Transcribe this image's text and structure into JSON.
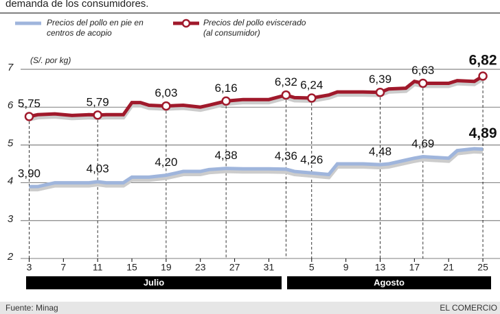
{
  "chart_data": {
    "type": "line",
    "subtitle": "demanda de los consumidores.",
    "y_label": "(S/. por kg)",
    "x": [
      0,
      1,
      3,
      5,
      7,
      8,
      9,
      11,
      12,
      13,
      14,
      16,
      18,
      20,
      21,
      23,
      25,
      28,
      30,
      31,
      33,
      35,
      36,
      39,
      41,
      42,
      44,
      45,
      46,
      49,
      50,
      52,
      53
    ],
    "series": [
      {
        "name": "Precios del pollo en pie en centros de acopio",
        "color": "#9fb5dc",
        "values": [
          3.9,
          3.9,
          4.0,
          4.0,
          4.0,
          4.03,
          4.0,
          4.0,
          4.15,
          4.15,
          4.15,
          4.2,
          4.3,
          4.3,
          4.35,
          4.38,
          4.37,
          4.37,
          4.36,
          4.3,
          4.26,
          4.22,
          4.5,
          4.5,
          4.48,
          4.5,
          4.6,
          4.65,
          4.69,
          4.65,
          4.85,
          4.9,
          4.89
        ],
        "value_labels": [
          "3,90",
          null,
          null,
          null,
          null,
          "4,03",
          null,
          null,
          null,
          null,
          null,
          "4,20",
          null,
          null,
          null,
          "4,38",
          null,
          null,
          "4,36",
          null,
          "4,26",
          null,
          null,
          null,
          "4,48",
          null,
          null,
          null,
          "4,69",
          null,
          null,
          null,
          "4,89"
        ]
      },
      {
        "name": "Precios del pollo eviscerado (al consumidor)",
        "color": "#a0192b",
        "values": [
          5.75,
          5.8,
          5.82,
          5.78,
          5.8,
          5.79,
          5.8,
          5.8,
          6.12,
          6.12,
          6.05,
          6.03,
          6.05,
          6.0,
          6.05,
          6.16,
          6.2,
          6.2,
          6.32,
          6.25,
          6.24,
          6.32,
          6.4,
          6.4,
          6.39,
          6.48,
          6.5,
          6.68,
          6.63,
          6.63,
          6.7,
          6.68,
          6.82
        ],
        "value_labels": [
          "5,75",
          null,
          null,
          null,
          null,
          "5,79",
          null,
          null,
          null,
          null,
          null,
          "6,03",
          null,
          null,
          null,
          "6,16",
          null,
          null,
          "6,32",
          null,
          "6,24",
          null,
          null,
          null,
          "6,39",
          null,
          null,
          null,
          "6,63",
          null,
          null,
          null,
          "6,82"
        ]
      }
    ],
    "xlim": [
      -1,
      55
    ],
    "xticks": [
      {
        "value": 0,
        "label": "3"
      },
      {
        "value": 4,
        "label": "7"
      },
      {
        "value": 8,
        "label": "11"
      },
      {
        "value": 12,
        "label": "15"
      },
      {
        "value": 16,
        "label": "19"
      },
      {
        "value": 20,
        "label": "23"
      },
      {
        "value": 24,
        "label": "27"
      },
      {
        "value": 28,
        "label": "31"
      },
      {
        "value": 33,
        "label": "5"
      },
      {
        "value": 37,
        "label": "9"
      },
      {
        "value": 41,
        "label": "13"
      },
      {
        "value": 45,
        "label": "17"
      },
      {
        "value": 49,
        "label": "21"
      },
      {
        "value": 53,
        "label": "25"
      }
    ],
    "months": [
      "Julio",
      "Agosto"
    ],
    "ylim": [
      2,
      7.2
    ],
    "yticks": [
      2,
      3,
      4,
      5,
      6,
      7
    ],
    "grid": true,
    "source": "Fuente: Minag",
    "credit": "EL COMERCIO"
  }
}
